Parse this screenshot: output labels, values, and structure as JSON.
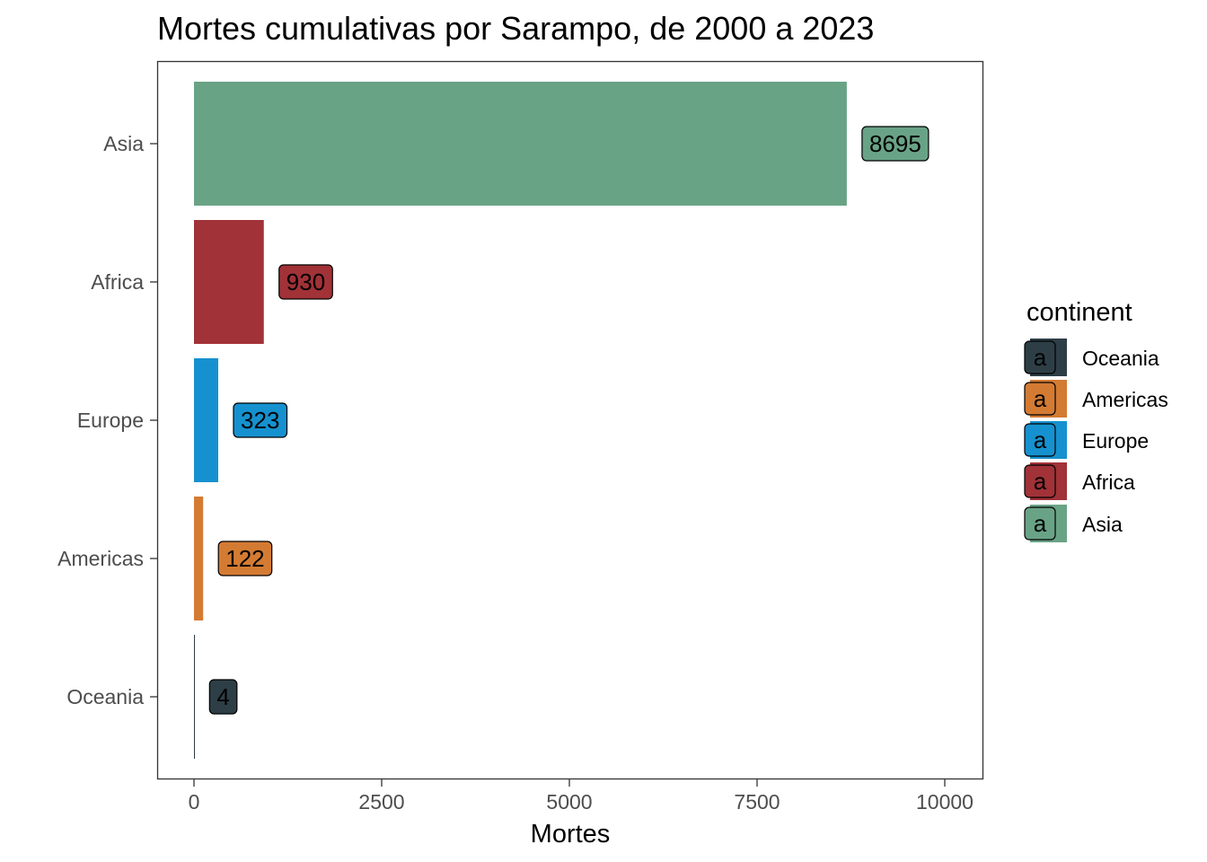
{
  "chart_data": {
    "type": "bar",
    "orientation": "horizontal",
    "title": "Mortes cumulativas por Sarampo, de 2000 a 2023",
    "xlabel": "Mortes",
    "ylabel": "",
    "xlim": [
      0,
      10000
    ],
    "xticks": [
      0,
      2500,
      5000,
      7500,
      10000
    ],
    "categories": [
      "Asia",
      "Africa",
      "Europe",
      "Americas",
      "Oceania"
    ],
    "values": [
      8695,
      930,
      323,
      122,
      4
    ],
    "colors": {
      "Asia": "#69a386",
      "Africa": "#a13237",
      "Europe": "#1691cf",
      "Americas": "#d47b33",
      "Oceania": "#2d3e46"
    },
    "grid": false,
    "legend": {
      "title": "continent",
      "placement": "right",
      "key_glyph": "a",
      "items": [
        "Oceania",
        "Americas",
        "Europe",
        "Africa",
        "Asia"
      ]
    }
  }
}
